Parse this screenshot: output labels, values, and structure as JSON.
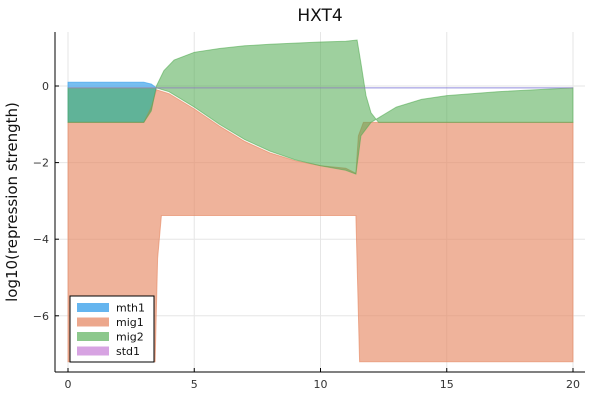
{
  "chart_data": {
    "type": "area",
    "title": "HXT4",
    "xlabel": "",
    "ylabel": "log10(repression strength)",
    "xlim": [
      -0.5,
      20.5
    ],
    "ylim": [
      -7.5,
      1.5
    ],
    "xticks": [
      0,
      5,
      10,
      15,
      20
    ],
    "yticks": [
      0,
      -2,
      -4,
      -6
    ],
    "xtick_labels": [
      "0",
      "5",
      "10",
      "15",
      "20"
    ],
    "ytick_labels": [
      "0",
      "−2",
      "−4",
      "−6"
    ],
    "grid": true,
    "legend_position": "bottom-left",
    "series": [
      {
        "name": "mth1",
        "color": "#4aa8ec",
        "opacity": 0.75,
        "upper": [
          [
            0,
            0.1
          ],
          [
            3.0,
            0.1
          ],
          [
            3.3,
            0.05
          ],
          [
            3.5,
            -0.05
          ],
          [
            20,
            -0.05
          ]
        ],
        "lower": [
          [
            0,
            -0.95
          ],
          [
            3.0,
            -0.95
          ],
          [
            3.3,
            -0.6
          ],
          [
            3.5,
            -0.05
          ],
          [
            20,
            -0.05
          ]
        ]
      },
      {
        "name": "mig1",
        "color": "#e68a66",
        "opacity": 0.65,
        "upper": [
          [
            0,
            -0.95
          ],
          [
            3.0,
            -0.95
          ],
          [
            3.3,
            -0.55
          ],
          [
            3.5,
            -0.1
          ],
          [
            4,
            -0.2
          ],
          [
            5,
            -0.6
          ],
          [
            6,
            -1.05
          ],
          [
            7,
            -1.45
          ],
          [
            8,
            -1.75
          ],
          [
            9,
            -1.95
          ],
          [
            10,
            -2.08
          ],
          [
            11,
            -2.15
          ],
          [
            11.4,
            -2.28
          ],
          [
            11.5,
            -1.3
          ],
          [
            11.7,
            -0.95
          ],
          [
            20,
            -0.95
          ]
        ],
        "lower": [
          [
            0,
            -7.2
          ],
          [
            3.45,
            -7.2
          ],
          [
            3.55,
            -4.5
          ],
          [
            3.7,
            -3.38
          ],
          [
            11.4,
            -3.38
          ],
          [
            11.55,
            -7.2
          ],
          [
            20,
            -7.2
          ]
        ]
      },
      {
        "name": "mig2",
        "color": "#4eaa4e",
        "opacity": 0.55,
        "upper": [
          [
            0,
            -0.95
          ],
          [
            3.0,
            -0.95
          ],
          [
            3.3,
            -0.65
          ],
          [
            3.5,
            0
          ],
          [
            3.8,
            0.4
          ],
          [
            4.2,
            0.68
          ],
          [
            5,
            0.88
          ],
          [
            6,
            0.98
          ],
          [
            7,
            1.05
          ],
          [
            8,
            1.09
          ],
          [
            9,
            1.12
          ],
          [
            10,
            1.15
          ],
          [
            11,
            1.17
          ],
          [
            11.45,
            1.2
          ],
          [
            11.6,
            0.6
          ],
          [
            11.8,
            -0.25
          ],
          [
            12,
            -0.7
          ],
          [
            12.3,
            -0.95
          ],
          [
            20,
            -0.95
          ]
        ],
        "lower": [
          [
            0,
            -0.05
          ],
          [
            3.3,
            -0.05
          ],
          [
            3.5,
            -0.05
          ],
          [
            4,
            -0.15
          ],
          [
            5,
            -0.55
          ],
          [
            6,
            -1.0
          ],
          [
            7,
            -1.4
          ],
          [
            8,
            -1.7
          ],
          [
            9,
            -1.93
          ],
          [
            10,
            -2.08
          ],
          [
            11,
            -2.2
          ],
          [
            11.4,
            -2.3
          ],
          [
            11.6,
            -1.3
          ],
          [
            12,
            -0.95
          ],
          [
            13,
            -0.55
          ],
          [
            14,
            -0.35
          ],
          [
            15,
            -0.25
          ],
          [
            17,
            -0.15
          ],
          [
            20,
            -0.05
          ]
        ]
      },
      {
        "name": "std1",
        "color": "#c271d2",
        "opacity": 0.55,
        "upper": [
          [
            0,
            -0.05
          ],
          [
            20,
            -0.05
          ]
        ],
        "lower": [
          [
            0,
            -0.05
          ],
          [
            20,
            -0.05
          ]
        ]
      }
    ]
  }
}
